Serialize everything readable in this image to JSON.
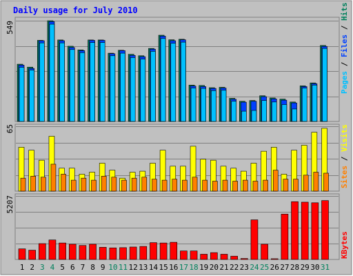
{
  "title": "Daily usage for July 2010",
  "colors": {
    "background": "#c0c0c0",
    "grid": "#808080",
    "title": "#0000ff",
    "hits": "#00805c",
    "files": "#0040ff",
    "pages": "#00c0ff",
    "visits": "#ffff00",
    "sites": "#ff8000",
    "kbytes": "#ff0000",
    "weekend_label": "#00805c",
    "weekday_label": "#000000"
  },
  "chart_data": [
    {
      "type": "bar",
      "name": "hits-files-pages",
      "max_label": "549",
      "ymax": 549,
      "legend": {
        "pages": "Pages",
        "files": "Files",
        "hits": "Hits",
        "separator": " / "
      },
      "series": [
        {
          "name": "Hits",
          "values": [
            312,
            296,
            442,
            549,
            444,
            410,
            390,
            444,
            444,
            372,
            388,
            366,
            358,
            398,
            470,
            445,
            448,
            198,
            196,
            184,
            186,
            126,
            110,
            114,
            140,
            128,
            122,
            106,
            194,
            210,
            414
          ]
        },
        {
          "name": "Files",
          "values": [
            307,
            289,
            440,
            544,
            440,
            403,
            386,
            442,
            442,
            369,
            386,
            360,
            353,
            394,
            465,
            440,
            445,
            193,
            190,
            180,
            182,
            121,
            105,
            110,
            135,
            123,
            116,
            101,
            190,
            206,
            409
          ]
        },
        {
          "name": "Pages",
          "values": [
            295,
            280,
            428,
            530,
            428,
            392,
            375,
            430,
            430,
            358,
            372,
            348,
            340,
            382,
            452,
            426,
            432,
            182,
            180,
            168,
            170,
            110,
            56,
            60,
            114,
            106,
            92,
            68,
            182,
            198,
            398
          ]
        }
      ]
    },
    {
      "type": "bar",
      "name": "visits-sites",
      "max_label": "65",
      "ymax": 65,
      "legend": {
        "sites": "Sites",
        "visits": "Visits",
        "separator": " / "
      },
      "series": [
        {
          "name": "Visits",
          "values": [
            44,
            41,
            31,
            55,
            23,
            23,
            17,
            19,
            28,
            21,
            13,
            19,
            20,
            28,
            41,
            25,
            25,
            45,
            32,
            31,
            25,
            23,
            20,
            28,
            40,
            44,
            17,
            41,
            46,
            59,
            63
          ]
        },
        {
          "name": "Sites",
          "values": [
            13,
            15,
            14,
            27,
            17,
            11,
            13,
            11,
            15,
            14,
            11,
            13,
            14,
            12,
            11,
            12,
            11,
            14,
            11,
            10,
            11,
            10,
            11,
            10,
            11,
            21,
            12,
            12,
            16,
            19,
            18
          ]
        }
      ]
    },
    {
      "type": "bar",
      "name": "kbytes",
      "max_label": "5207",
      "ymax": 5207,
      "legend": {
        "kbytes": "KBytes"
      },
      "series": [
        {
          "name": "KBytes",
          "values": [
            870,
            760,
            1300,
            1600,
            1350,
            1250,
            1150,
            1250,
            1000,
            950,
            970,
            1020,
            1070,
            1380,
            1350,
            1410,
            700,
            700,
            430,
            560,
            430,
            270,
            80,
            3250,
            1250,
            60,
            3720,
            4740,
            4700,
            4650,
            4830
          ]
        }
      ]
    }
  ],
  "days": [
    "1",
    "2",
    "3",
    "4",
    "5",
    "6",
    "7",
    "8",
    "9",
    "10",
    "11",
    "12",
    "13",
    "14",
    "15",
    "16",
    "17",
    "18",
    "19",
    "20",
    "21",
    "22",
    "23",
    "24",
    "25",
    "26",
    "27",
    "28",
    "29",
    "30",
    "31"
  ],
  "weekend_days": [
    3,
    4,
    10,
    11,
    17,
    18,
    24,
    25,
    31
  ]
}
